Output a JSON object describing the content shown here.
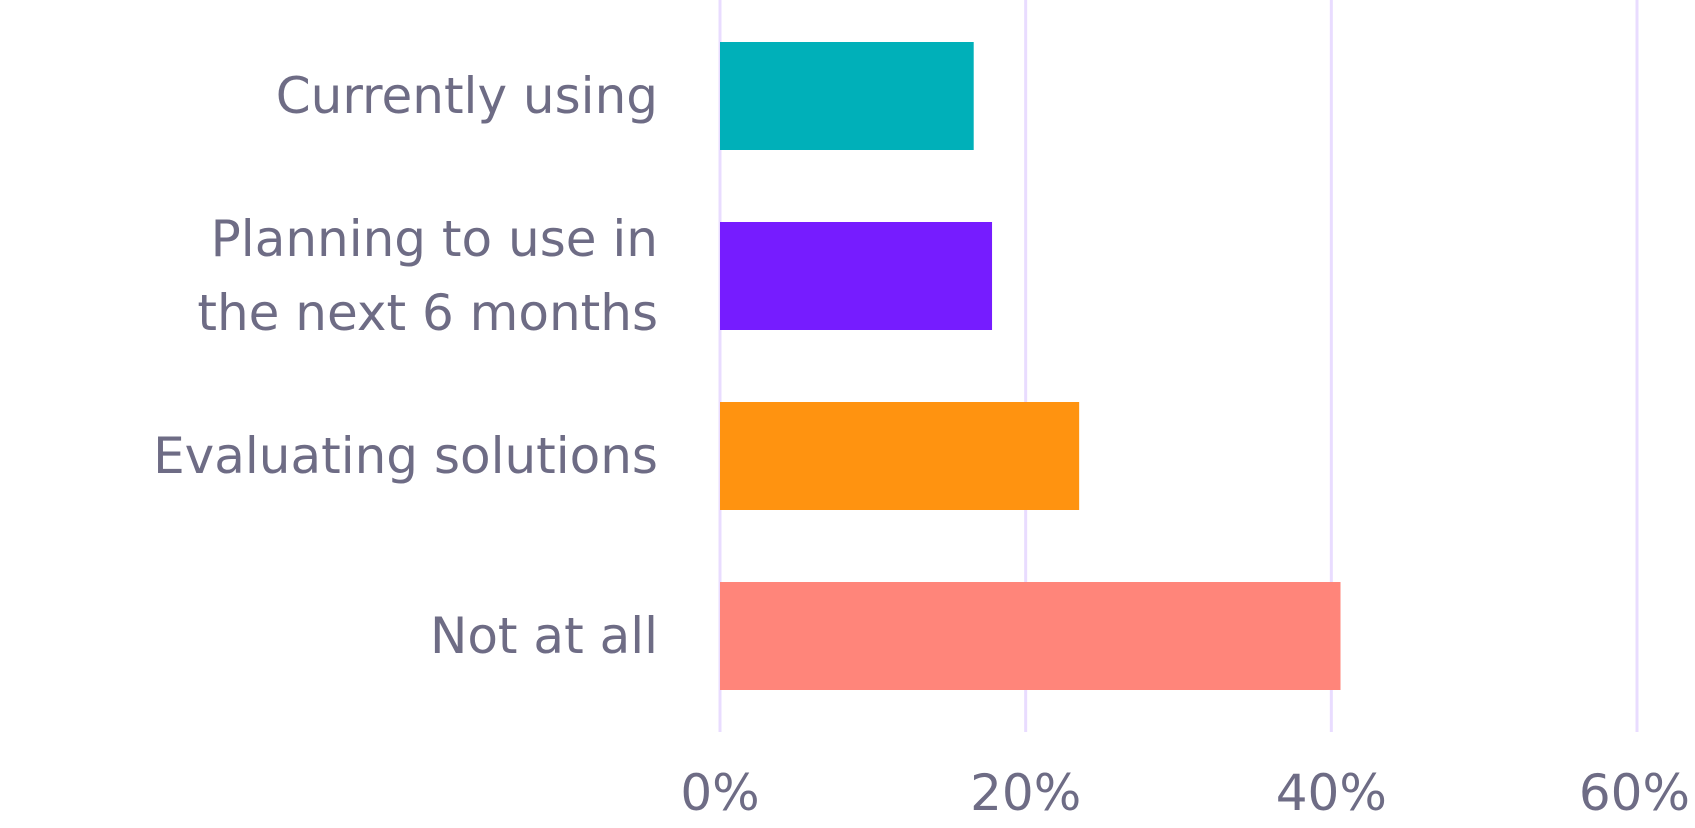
{
  "chart_data": {
    "type": "bar",
    "orientation": "horizontal",
    "categories": [
      [
        "Currently using"
      ],
      [
        "Planning to use in",
        "the next 6 months"
      ],
      [
        "Evaluating solutions"
      ],
      [
        "Not at all"
      ]
    ],
    "values": [
      16.6,
      17.8,
      23.5,
      40.6
    ],
    "colors": [
      "#00b0b9",
      "#761cff",
      "#ff9310",
      "#ff857a"
    ],
    "xlim": [
      0,
      60
    ],
    "xticks": [
      0,
      20,
      40,
      60
    ],
    "xtick_labels": [
      "0%",
      "20%",
      "40%",
      "60%"
    ],
    "grid": "vertical",
    "gridline_color": "#e9dcff",
    "title": "",
    "xlabel": "",
    "ylabel": ""
  }
}
